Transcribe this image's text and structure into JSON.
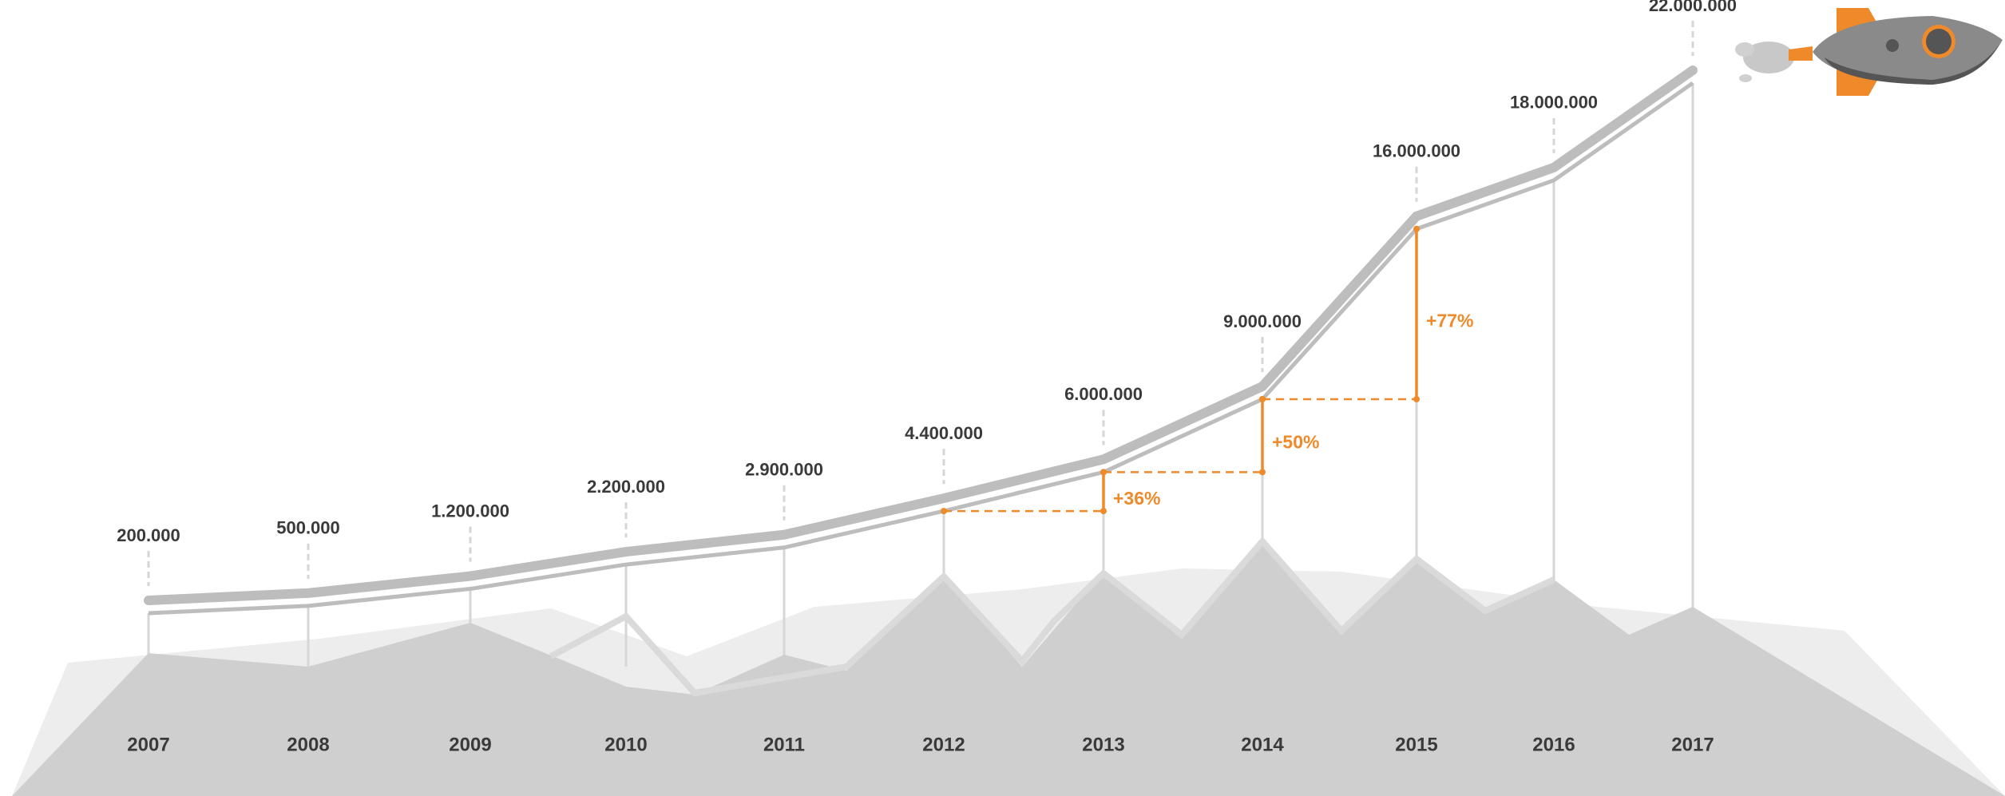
{
  "chart_data": {
    "type": "line",
    "categories": [
      "2007",
      "2008",
      "2009",
      "2010",
      "2011",
      "2012",
      "2013",
      "2014",
      "2015",
      "2016",
      "2017"
    ],
    "values": [
      200000,
      500000,
      1200000,
      2200000,
      2900000,
      4400000,
      6000000,
      9000000,
      16000000,
      18000000,
      22000000
    ],
    "value_labels": [
      "200.000",
      "500.000",
      "1.200.000",
      "2.200.000",
      "2.900.000",
      "4.400.000",
      "6.000.000",
      "9.000.000",
      "16.000.000",
      "18.000.000",
      "22.000.000"
    ],
    "color": "#bdbdbd",
    "annotations": [
      "+36%",
      "+50%",
      "+77%"
    ],
    "annotation_color": "#ee8a2a"
  }
}
